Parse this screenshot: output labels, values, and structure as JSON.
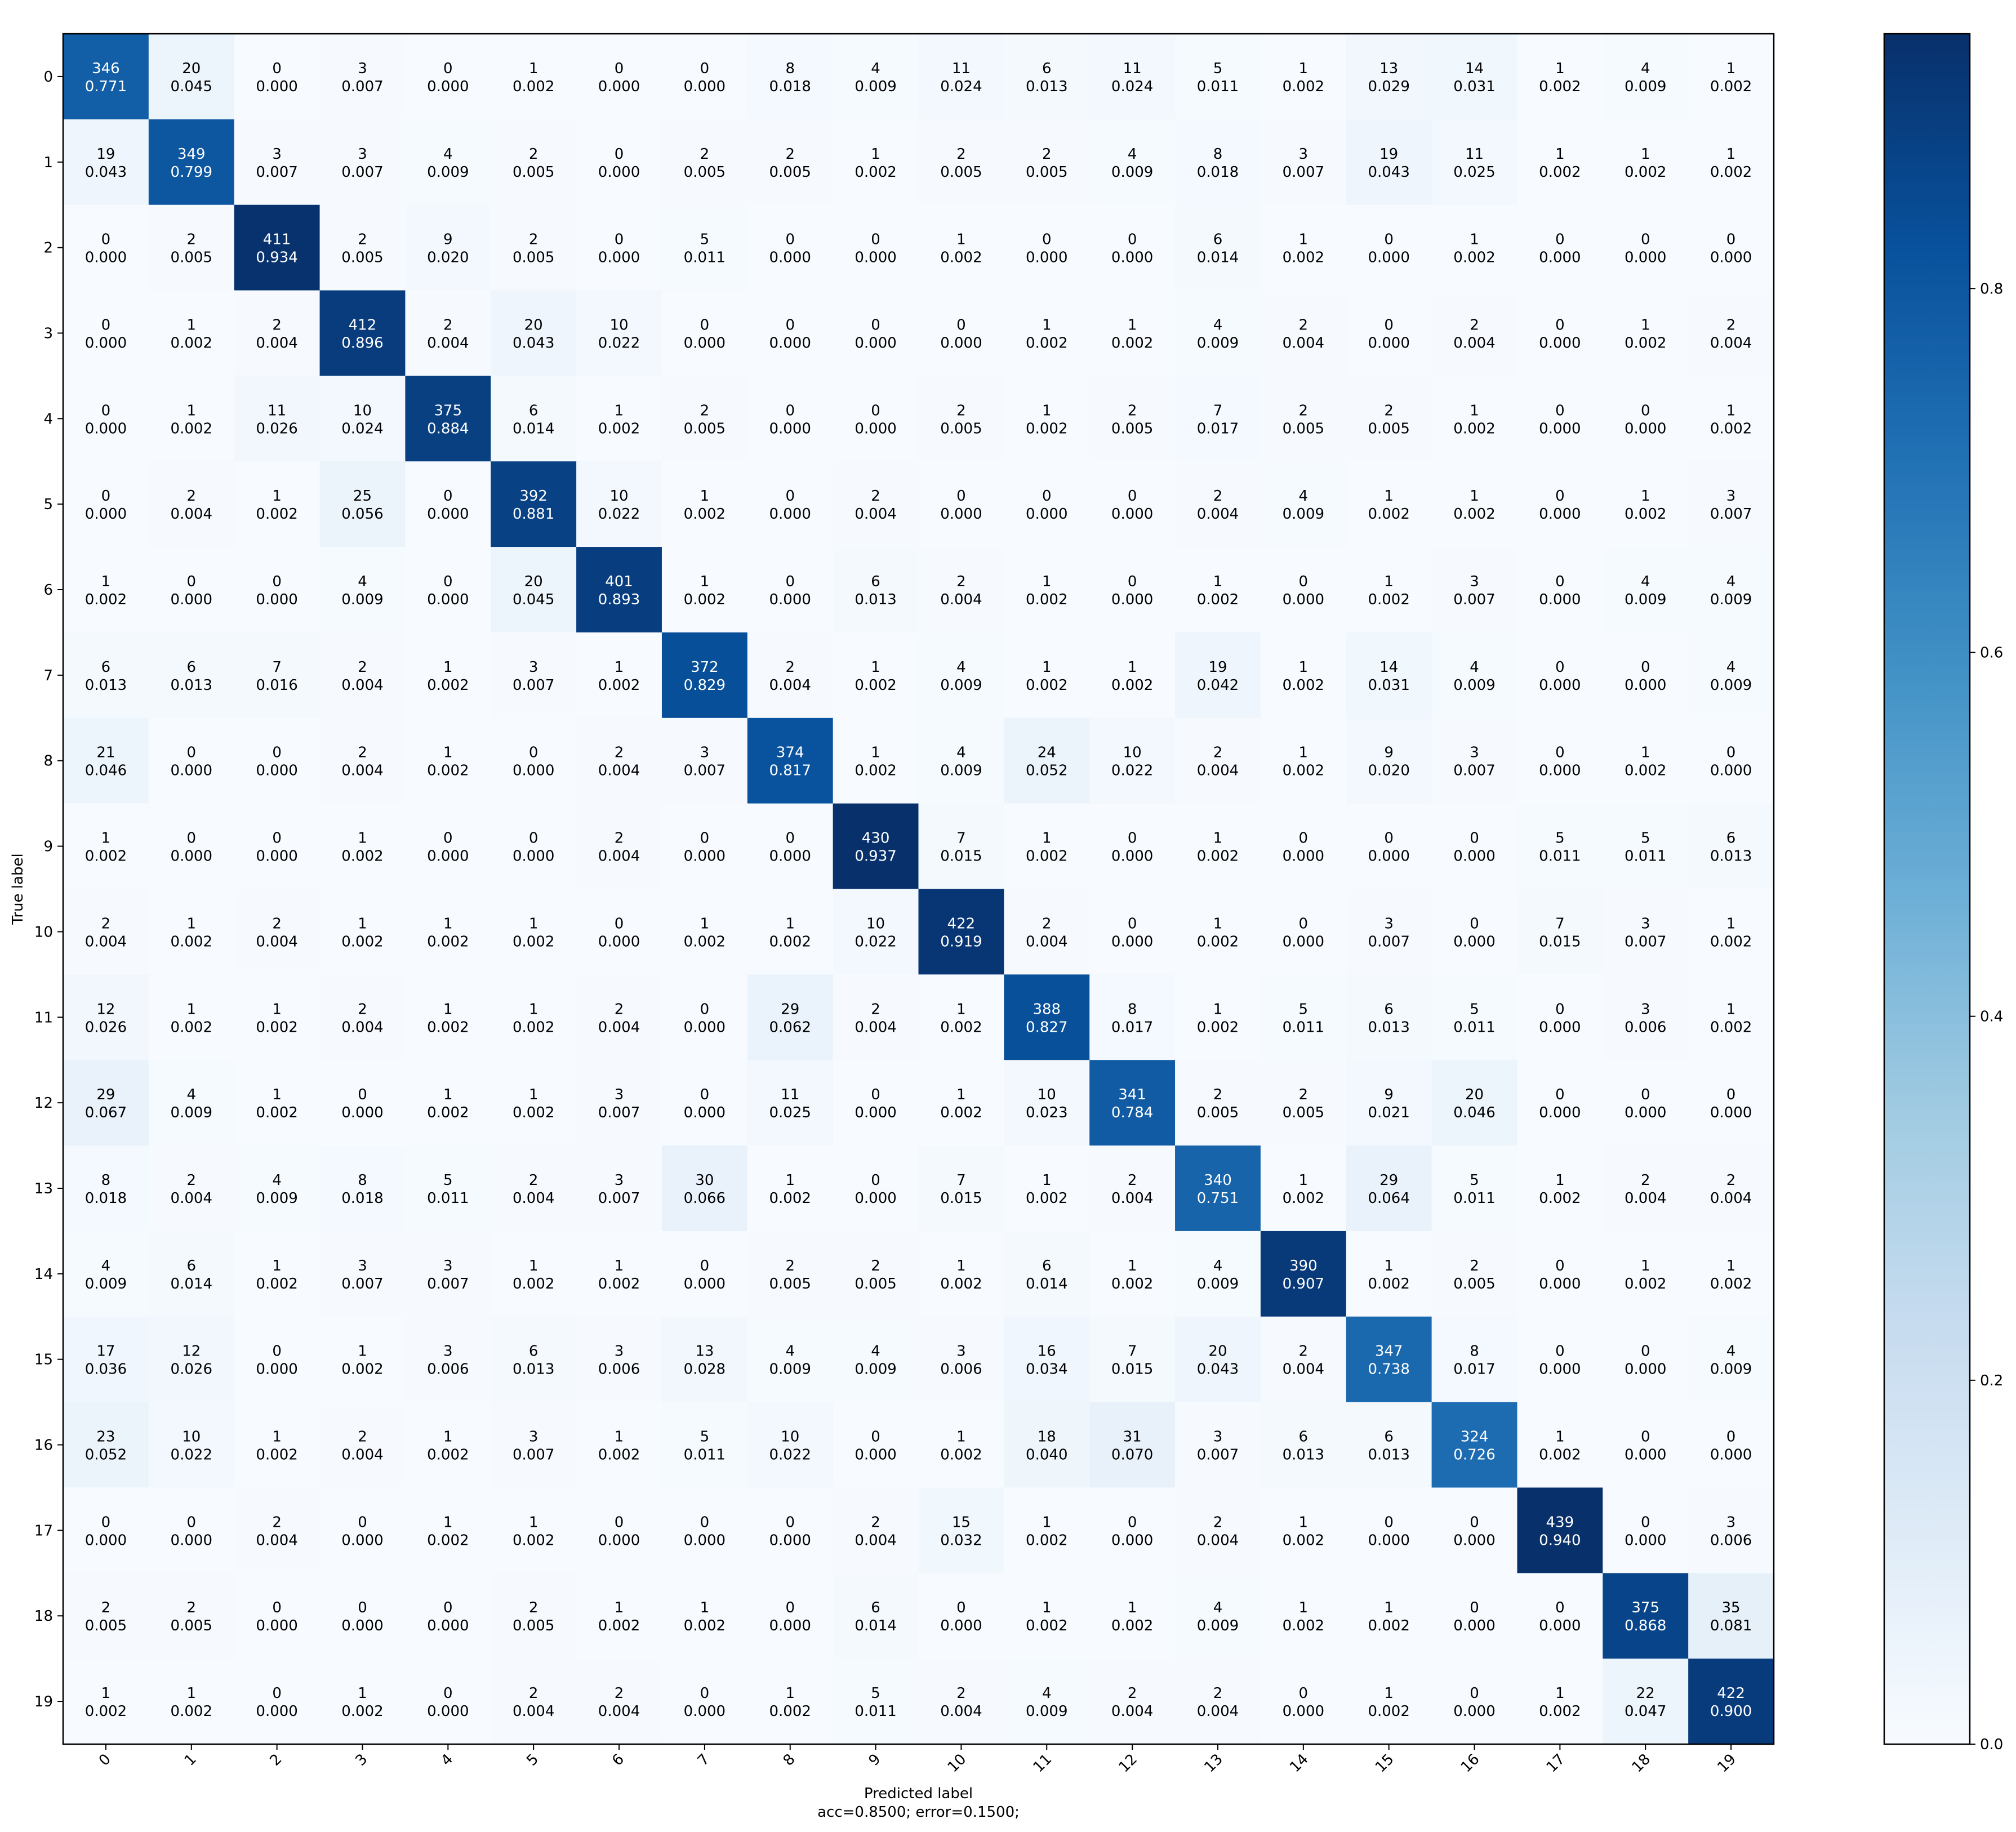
{
  "chart_data": {
    "type": "heatmap",
    "title": "",
    "xlabel": "Predicted label",
    "ylabel": "True label",
    "subtitle": "acc=0.8500; error=0.1500;",
    "categories": [
      "0",
      "1",
      "2",
      "3",
      "4",
      "5",
      "6",
      "7",
      "8",
      "9",
      "10",
      "11",
      "12",
      "13",
      "14",
      "15",
      "16",
      "17",
      "18",
      "19"
    ],
    "colormap": "Blues",
    "colorbar": {
      "range": [
        0,
        0.94
      ],
      "ticks": [
        "0.0",
        "0.2",
        "0.4",
        "0.6",
        "0.8"
      ],
      "tick_values": [
        0,
        0.2,
        0.4,
        0.6,
        0.8
      ]
    },
    "counts": [
      [
        346,
        20,
        0,
        3,
        0,
        1,
        0,
        0,
        8,
        4,
        11,
        6,
        11,
        5,
        1,
        13,
        14,
        1,
        4,
        1
      ],
      [
        19,
        349,
        3,
        3,
        4,
        2,
        0,
        2,
        2,
        1,
        2,
        2,
        4,
        8,
        3,
        19,
        11,
        1,
        1,
        1
      ],
      [
        0,
        2,
        411,
        2,
        9,
        2,
        0,
        5,
        0,
        0,
        1,
        0,
        0,
        6,
        1,
        0,
        1,
        0,
        0,
        0
      ],
      [
        0,
        1,
        2,
        412,
        2,
        20,
        10,
        0,
        0,
        0,
        0,
        1,
        1,
        4,
        2,
        0,
        2,
        0,
        1,
        2
      ],
      [
        0,
        1,
        11,
        10,
        375,
        6,
        1,
        2,
        0,
        0,
        2,
        1,
        2,
        7,
        2,
        2,
        1,
        0,
        0,
        1
      ],
      [
        0,
        2,
        1,
        25,
        0,
        392,
        10,
        1,
        0,
        2,
        0,
        0,
        0,
        2,
        4,
        1,
        1,
        0,
        1,
        3
      ],
      [
        1,
        0,
        0,
        4,
        0,
        20,
        401,
        1,
        0,
        6,
        2,
        1,
        0,
        1,
        0,
        1,
        3,
        0,
        4,
        4
      ],
      [
        6,
        6,
        7,
        2,
        1,
        3,
        1,
        372,
        2,
        1,
        4,
        1,
        1,
        19,
        1,
        14,
        4,
        0,
        0,
        4
      ],
      [
        21,
        0,
        0,
        2,
        1,
        0,
        2,
        3,
        374,
        1,
        4,
        24,
        10,
        2,
        1,
        9,
        3,
        0,
        1,
        0
      ],
      [
        1,
        0,
        0,
        1,
        0,
        0,
        2,
        0,
        0,
        430,
        7,
        1,
        0,
        1,
        0,
        0,
        0,
        5,
        5,
        6
      ],
      [
        2,
        1,
        2,
        1,
        1,
        1,
        0,
        1,
        1,
        10,
        422,
        2,
        0,
        1,
        0,
        3,
        0,
        7,
        3,
        1
      ],
      [
        12,
        1,
        1,
        2,
        1,
        1,
        2,
        0,
        29,
        2,
        1,
        388,
        8,
        1,
        5,
        6,
        5,
        0,
        3,
        1
      ],
      [
        29,
        4,
        1,
        0,
        1,
        1,
        3,
        0,
        11,
        0,
        1,
        10,
        341,
        2,
        2,
        9,
        20,
        0,
        0,
        0
      ],
      [
        8,
        2,
        4,
        8,
        5,
        2,
        3,
        30,
        1,
        0,
        7,
        1,
        2,
        340,
        1,
        29,
        5,
        1,
        2,
        2
      ],
      [
        4,
        6,
        1,
        3,
        3,
        1,
        1,
        0,
        2,
        2,
        1,
        6,
        1,
        4,
        390,
        1,
        2,
        0,
        1,
        1
      ],
      [
        17,
        12,
        0,
        1,
        3,
        6,
        3,
        13,
        4,
        4,
        3,
        16,
        7,
        20,
        2,
        347,
        8,
        0,
        0,
        4
      ],
      [
        23,
        10,
        1,
        2,
        1,
        3,
        1,
        5,
        10,
        0,
        1,
        18,
        31,
        3,
        6,
        6,
        324,
        1,
        0,
        0
      ],
      [
        0,
        0,
        2,
        0,
        1,
        1,
        0,
        0,
        0,
        2,
        15,
        1,
        0,
        2,
        1,
        0,
        0,
        439,
        0,
        3
      ],
      [
        2,
        2,
        0,
        0,
        0,
        2,
        1,
        1,
        0,
        6,
        0,
        1,
        1,
        4,
        1,
        1,
        0,
        0,
        375,
        35
      ],
      [
        1,
        1,
        0,
        1,
        0,
        2,
        2,
        0,
        1,
        5,
        2,
        4,
        2,
        2,
        0,
        1,
        0,
        1,
        22,
        422
      ]
    ],
    "normalized": [
      [
        "0.771",
        "0.045",
        "0.000",
        "0.007",
        "0.000",
        "0.002",
        "0.000",
        "0.000",
        "0.018",
        "0.009",
        "0.024",
        "0.013",
        "0.024",
        "0.011",
        "0.002",
        "0.029",
        "0.031",
        "0.002",
        "0.009",
        "0.002"
      ],
      [
        "0.043",
        "0.799",
        "0.007",
        "0.007",
        "0.009",
        "0.005",
        "0.000",
        "0.005",
        "0.005",
        "0.002",
        "0.005",
        "0.005",
        "0.009",
        "0.018",
        "0.007",
        "0.043",
        "0.025",
        "0.002",
        "0.002",
        "0.002"
      ],
      [
        "0.000",
        "0.005",
        "0.934",
        "0.005",
        "0.020",
        "0.005",
        "0.000",
        "0.011",
        "0.000",
        "0.000",
        "0.002",
        "0.000",
        "0.000",
        "0.014",
        "0.002",
        "0.000",
        "0.002",
        "0.000",
        "0.000",
        "0.000"
      ],
      [
        "0.000",
        "0.002",
        "0.004",
        "0.896",
        "0.004",
        "0.043",
        "0.022",
        "0.000",
        "0.000",
        "0.000",
        "0.000",
        "0.002",
        "0.002",
        "0.009",
        "0.004",
        "0.000",
        "0.004",
        "0.000",
        "0.002",
        "0.004"
      ],
      [
        "0.000",
        "0.002",
        "0.026",
        "0.024",
        "0.884",
        "0.014",
        "0.002",
        "0.005",
        "0.000",
        "0.000",
        "0.005",
        "0.002",
        "0.005",
        "0.017",
        "0.005",
        "0.005",
        "0.002",
        "0.000",
        "0.000",
        "0.002"
      ],
      [
        "0.000",
        "0.004",
        "0.002",
        "0.056",
        "0.000",
        "0.881",
        "0.022",
        "0.002",
        "0.000",
        "0.004",
        "0.000",
        "0.000",
        "0.000",
        "0.004",
        "0.009",
        "0.002",
        "0.002",
        "0.000",
        "0.002",
        "0.007"
      ],
      [
        "0.002",
        "0.000",
        "0.000",
        "0.009",
        "0.000",
        "0.045",
        "0.893",
        "0.002",
        "0.000",
        "0.013",
        "0.004",
        "0.002",
        "0.000",
        "0.002",
        "0.000",
        "0.002",
        "0.007",
        "0.000",
        "0.009",
        "0.009"
      ],
      [
        "0.013",
        "0.013",
        "0.016",
        "0.004",
        "0.002",
        "0.007",
        "0.002",
        "0.829",
        "0.004",
        "0.002",
        "0.009",
        "0.002",
        "0.002",
        "0.042",
        "0.002",
        "0.031",
        "0.009",
        "0.000",
        "0.000",
        "0.009"
      ],
      [
        "0.046",
        "0.000",
        "0.000",
        "0.004",
        "0.002",
        "0.000",
        "0.004",
        "0.007",
        "0.817",
        "0.002",
        "0.009",
        "0.052",
        "0.022",
        "0.004",
        "0.002",
        "0.020",
        "0.007",
        "0.000",
        "0.002",
        "0.000"
      ],
      [
        "0.002",
        "0.000",
        "0.000",
        "0.002",
        "0.000",
        "0.000",
        "0.004",
        "0.000",
        "0.000",
        "0.937",
        "0.015",
        "0.002",
        "0.000",
        "0.002",
        "0.000",
        "0.000",
        "0.000",
        "0.011",
        "0.011",
        "0.013"
      ],
      [
        "0.004",
        "0.002",
        "0.004",
        "0.002",
        "0.002",
        "0.002",
        "0.000",
        "0.002",
        "0.002",
        "0.022",
        "0.919",
        "0.004",
        "0.000",
        "0.002",
        "0.000",
        "0.007",
        "0.000",
        "0.015",
        "0.007",
        "0.002"
      ],
      [
        "0.026",
        "0.002",
        "0.002",
        "0.004",
        "0.002",
        "0.002",
        "0.004",
        "0.000",
        "0.062",
        "0.004",
        "0.002",
        "0.827",
        "0.017",
        "0.002",
        "0.011",
        "0.013",
        "0.011",
        "0.000",
        "0.006",
        "0.002"
      ],
      [
        "0.067",
        "0.009",
        "0.002",
        "0.000",
        "0.002",
        "0.002",
        "0.007",
        "0.000",
        "0.025",
        "0.000",
        "0.002",
        "0.023",
        "0.784",
        "0.005",
        "0.005",
        "0.021",
        "0.046",
        "0.000",
        "0.000",
        "0.000"
      ],
      [
        "0.018",
        "0.004",
        "0.009",
        "0.018",
        "0.011",
        "0.004",
        "0.007",
        "0.066",
        "0.002",
        "0.000",
        "0.015",
        "0.002",
        "0.004",
        "0.751",
        "0.002",
        "0.064",
        "0.011",
        "0.002",
        "0.004",
        "0.004"
      ],
      [
        "0.009",
        "0.014",
        "0.002",
        "0.007",
        "0.007",
        "0.002",
        "0.002",
        "0.000",
        "0.005",
        "0.005",
        "0.002",
        "0.014",
        "0.002",
        "0.009",
        "0.907",
        "0.002",
        "0.005",
        "0.000",
        "0.002",
        "0.002"
      ],
      [
        "0.036",
        "0.026",
        "0.000",
        "0.002",
        "0.006",
        "0.013",
        "0.006",
        "0.028",
        "0.009",
        "0.009",
        "0.006",
        "0.034",
        "0.015",
        "0.043",
        "0.004",
        "0.738",
        "0.017",
        "0.000",
        "0.000",
        "0.009"
      ],
      [
        "0.052",
        "0.022",
        "0.002",
        "0.004",
        "0.002",
        "0.007",
        "0.002",
        "0.011",
        "0.022",
        "0.000",
        "0.002",
        "0.040",
        "0.070",
        "0.007",
        "0.013",
        "0.013",
        "0.726",
        "0.002",
        "0.000",
        "0.000"
      ],
      [
        "0.000",
        "0.000",
        "0.004",
        "0.000",
        "0.002",
        "0.002",
        "0.000",
        "0.000",
        "0.000",
        "0.004",
        "0.032",
        "0.002",
        "0.000",
        "0.004",
        "0.002",
        "0.000",
        "0.000",
        "0.940",
        "0.000",
        "0.006"
      ],
      [
        "0.005",
        "0.005",
        "0.000",
        "0.000",
        "0.000",
        "0.005",
        "0.002",
        "0.002",
        "0.000",
        "0.014",
        "0.000",
        "0.002",
        "0.002",
        "0.009",
        "0.002",
        "0.002",
        "0.000",
        "0.000",
        "0.868",
        "0.081"
      ],
      [
        "0.002",
        "0.002",
        "0.000",
        "0.002",
        "0.000",
        "0.004",
        "0.004",
        "0.000",
        "0.002",
        "0.011",
        "0.004",
        "0.009",
        "0.004",
        "0.004",
        "0.000",
        "0.002",
        "0.000",
        "0.002",
        "0.047",
        "0.900"
      ]
    ]
  }
}
